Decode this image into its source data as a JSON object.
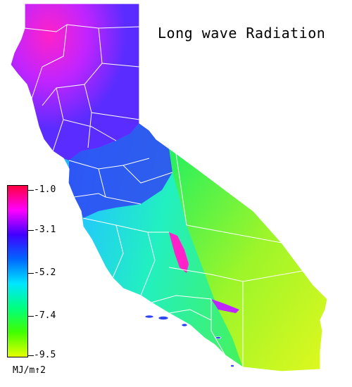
{
  "title": "Long wave Radiation",
  "legend": {
    "units": "MJ/m↑2",
    "ticks": [
      "-1.0",
      "-3.1",
      "-5.2",
      "-7.4",
      "-9.5"
    ],
    "range": [
      -9.5,
      -1.0
    ],
    "colors": [
      "#ff0040",
      "#ff00ff",
      "#4000ff",
      "#0066ff",
      "#00e6ff",
      "#00ff80",
      "#40ff00",
      "#e6ff00"
    ]
  },
  "map": {
    "region": "California",
    "boundaries": "county",
    "boundary_color": "#ffffff",
    "colormap_regions": [
      {
        "area": "northern coast",
        "color": "#ff22bb"
      },
      {
        "area": "northeast",
        "color": "#7a2cf0"
      },
      {
        "area": "sierra nevada",
        "color": "#2a3cf0"
      },
      {
        "area": "central valley",
        "color": "#20b6ff"
      },
      {
        "area": "southern desert",
        "color": "#6cf24a"
      },
      {
        "area": "owens valley",
        "color": "#d2f51e"
      }
    ]
  }
}
